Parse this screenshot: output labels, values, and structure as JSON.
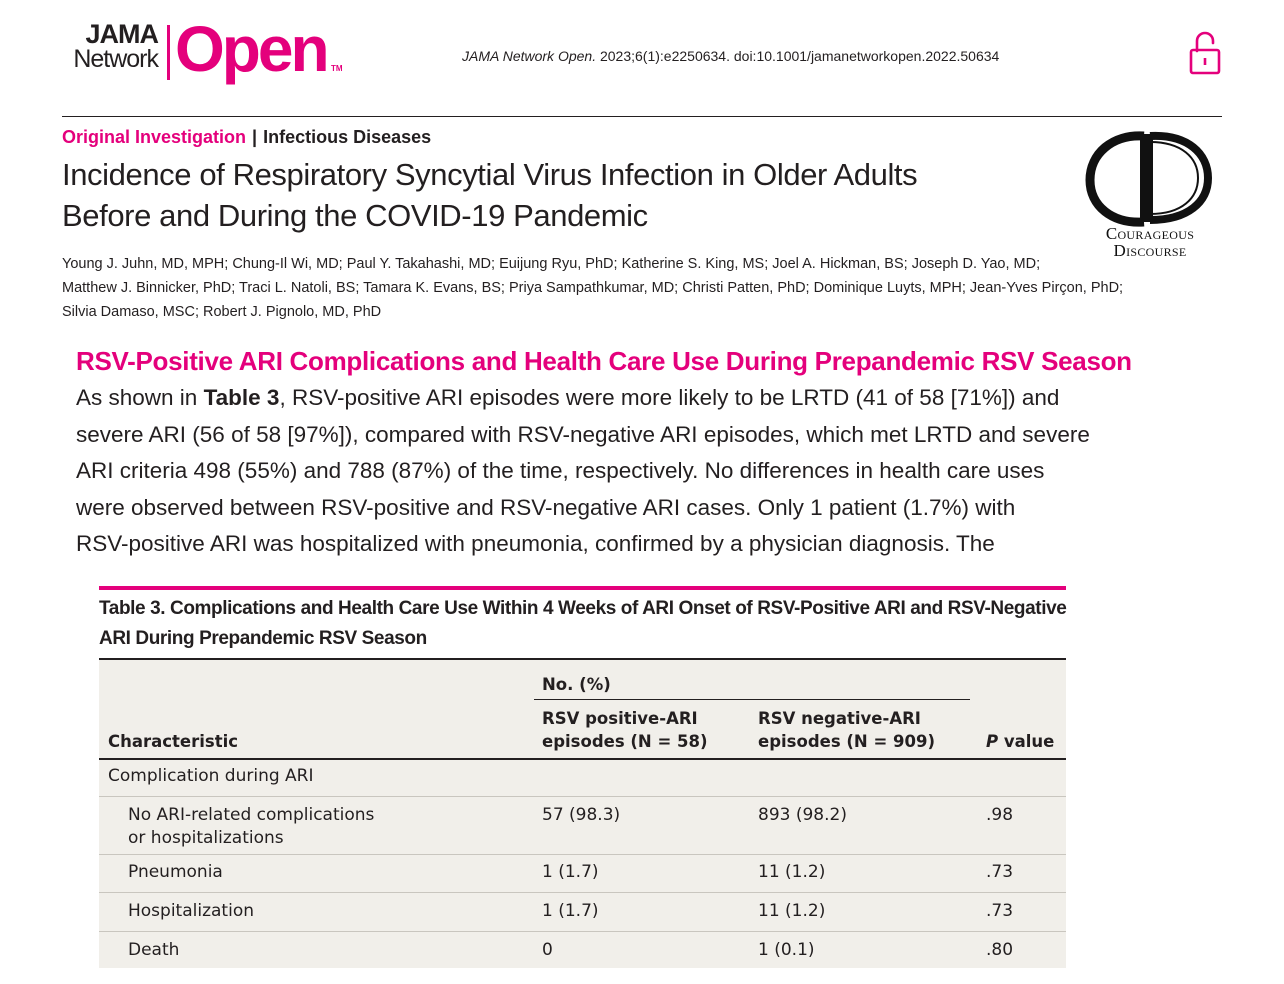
{
  "journal": {
    "logo_jama": "JAMA",
    "logo_network": "Network",
    "logo_open": "Open",
    "logo_tm": "TM",
    "citation_journal": "JAMA Network Open.",
    "citation_rest": " 2023;6(1):e2250634. doi:10.1001/jamanetworkopen.2022.50634",
    "lock_icon": "open-lock-icon",
    "accent_color": "#e4007c"
  },
  "article": {
    "type": "Original Investigation",
    "separator": "|",
    "category": "Infectious Diseases",
    "title_line1": "Incidence of Respiratory Syncytial Virus Infection in Older Adults",
    "title_line2": "Before and During the COVID-19 Pandemic",
    "authors_line1": "Young J. Juhn, MD, MPH; Chung-Il Wi, MD; Paul Y. Takahashi, MD; Euijung Ryu, PhD; Katherine S. King, MS; Joel A. Hickman, BS; Joseph D. Yao, MD;",
    "authors_line2": "Matthew J. Binnicker, PhD; Traci L. Natoli, BS; Tamara K. Evans, BS; Priya Sampathkumar, MD; Christi Patten, PhD; Dominique Luyts, MPH; Jean-Yves Pirçon, PhD;",
    "authors_line3": "Silvia Damaso, MSC; Robert J. Pignolo, MD, PhD"
  },
  "overlay_logo": {
    "line1": "Courageous",
    "line2": "Discourse"
  },
  "section": {
    "heading": "RSV-Positive ARI Complications and Health Care Use During Prepandemic RSV Season",
    "line1_pre": "As shown in ",
    "line1_bold": "Table 3",
    "line1_post": ", RSV-positive ARI episodes were more likely to be LRTD (41 of 58 [71%]) and",
    "line2": "severe ARI (56 of 58 [97%]), compared with RSV-negative ARI episodes, which met LRTD and severe",
    "line3": "ARI criteria 498 (55%) and 788 (87%) of the time, respectively. No differences in health care uses",
    "line4": "were observed between RSV-positive and RSV-negative ARI cases. Only 1 patient (1.7%) with",
    "line5": "RSV-positive ARI was hospitalized with pneumonia, confirmed by a physician diagnosis. The"
  },
  "table": {
    "caption_line1": "Table 3. Complications and Health Care Use Within 4 Weeks of ARI Onset of RSV-Positive ARI and RSV-Negative",
    "caption_line2": "ARI During Prepandemic RSV Season",
    "group_header": "No. (%)",
    "col_characteristic": "Characteristic",
    "col_pos_line1": "RSV positive-ARI",
    "col_pos_line2": "episodes (N = 58)",
    "col_neg_line1": "RSV negative-ARI",
    "col_neg_line2": "episodes (N = 909)",
    "col_p_italic": "P",
    "col_p_rest": " value",
    "section_row": "Complication during ARI",
    "rows": [
      {
        "label1": "No ARI-related complications",
        "label2": "or hospitalizations",
        "pos": "57 (98.3)",
        "neg": "893 (98.2)",
        "p": ".98"
      },
      {
        "label1": "Pneumonia",
        "label2": "",
        "pos": "1 (1.7)",
        "neg": "11 (1.2)",
        "p": ".73"
      },
      {
        "label1": "Hospitalization",
        "label2": "",
        "pos": "1 (1.7)",
        "neg": "11 (1.2)",
        "p": ".73"
      },
      {
        "label1": "Death",
        "label2": "",
        "pos": "0",
        "neg": "1 (0.1)",
        "p": ".80"
      }
    ]
  }
}
